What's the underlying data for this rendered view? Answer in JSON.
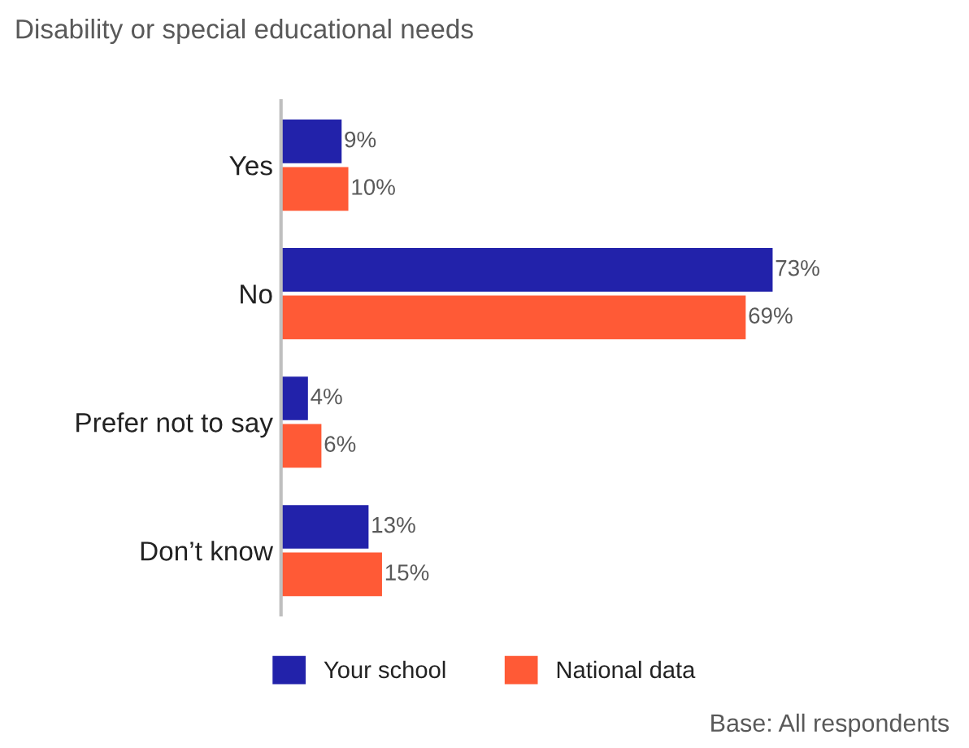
{
  "chart_data": {
    "type": "bar",
    "orientation": "horizontal",
    "title": "Disability or special educational needs",
    "categories": [
      "Yes",
      "No",
      "Prefer not to say",
      "Don’t know"
    ],
    "series": [
      {
        "name": "Your school",
        "color": "#2222aa",
        "values": [
          9,
          73,
          4,
          13
        ],
        "value_labels": [
          "9%",
          "73%",
          "4%",
          "13%"
        ]
      },
      {
        "name": "National data",
        "color": "#ff5a36",
        "values": [
          10,
          69,
          6,
          15
        ],
        "value_labels": [
          "10%",
          "69%",
          "6%",
          "15%"
        ]
      }
    ],
    "legend": "bottom",
    "grid": false,
    "tick_labels": "y",
    "annotations": [
      "Base: All respondents"
    ]
  }
}
